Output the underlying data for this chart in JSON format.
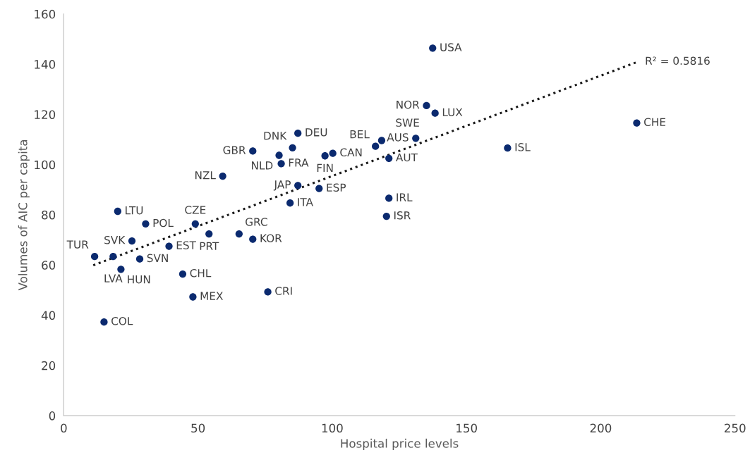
{
  "chart_data": {
    "type": "scatter",
    "xlabel": "Hospital price levels",
    "ylabel": "Volumes of AIC per capita",
    "xlim": [
      0,
      250
    ],
    "xticks": [
      0,
      50,
      100,
      150,
      200,
      250
    ],
    "ylim": [
      0,
      160
    ],
    "yticks": [
      0,
      20,
      40,
      60,
      80,
      100,
      120,
      140,
      160
    ],
    "grid": false,
    "marker": "circle",
    "series": [
      {
        "color": "#0b2a6f",
        "x": [
          137.4,
          135.1,
          138.3,
          131.1,
          121.1,
          165.3,
          213.4,
          87.2,
          85.2,
          70.4,
          80.2,
          81.0,
          97.3,
          100.2,
          116.1,
          118.4,
          59.2,
          87.2,
          95.1,
          84.3,
          121.1,
          120.2,
          20.1,
          30.5,
          49.0,
          28.3,
          54.1,
          65.3,
          70.4,
          25.4,
          39.2,
          18.4,
          11.5,
          21.3,
          44.3,
          48.1,
          76.0,
          15.0
        ],
        "values": [
          146.4,
          123.5,
          120.5,
          110.5,
          102.5,
          106.6,
          116.6,
          112.5,
          106.7,
          105.4,
          103.7,
          100.4,
          103.5,
          104.5,
          107.3,
          109.6,
          95.4,
          91.7,
          90.5,
          84.7,
          86.6,
          79.4,
          81.4,
          76.4,
          76.4,
          62.4,
          72.4,
          72.4,
          70.3,
          69.6,
          67.5,
          63.4,
          63.4,
          58.3,
          56.4,
          47.3,
          49.3,
          37.3
        ]
      },
      {
        "type": "line",
        "color": "#1a1a1a",
        "line_style": "dotted",
        "marker": "none",
        "x": [
          11.0,
          213.9
        ],
        "values": [
          59.9,
          141.0
        ]
      }
    ],
    "annotations": [
      {
        "text": "USA",
        "x": 137.4,
        "y": 146.4
      },
      {
        "text": "NOR",
        "x": 135.1,
        "y": 123.5
      },
      {
        "text": "LUX",
        "x": 138.3,
        "y": 120.5
      },
      {
        "text": "AUS",
        "x": 131.1,
        "y": 110.5
      },
      {
        "text": "AUT",
        "x": 121.1,
        "y": 102.5
      },
      {
        "text": "ISL",
        "x": 165.3,
        "y": 106.6
      },
      {
        "text": "CHE",
        "x": 213.4,
        "y": 116.6
      },
      {
        "text": "DEU",
        "x": 87.2,
        "y": 112.5
      },
      {
        "text": "DNK",
        "x": 85.2,
        "y": 106.7
      },
      {
        "text": "GBR",
        "x": 70.4,
        "y": 105.4
      },
      {
        "text": "NLD",
        "x": 80.2,
        "y": 103.7
      },
      {
        "text": "FRA",
        "x": 81.0,
        "y": 100.4
      },
      {
        "text": "FIN",
        "x": 97.3,
        "y": 103.5
      },
      {
        "text": "CAN",
        "x": 100.2,
        "y": 104.5
      },
      {
        "text": "BEL",
        "x": 116.1,
        "y": 107.3
      },
      {
        "text": "SWE",
        "x": 118.4,
        "y": 109.6
      },
      {
        "text": "NZL",
        "x": 59.2,
        "y": 95.4
      },
      {
        "text": "JAP",
        "x": 87.2,
        "y": 91.7
      },
      {
        "text": "ESP",
        "x": 95.1,
        "y": 90.5
      },
      {
        "text": "ITA",
        "x": 84.3,
        "y": 84.7
      },
      {
        "text": "IRL",
        "x": 121.1,
        "y": 86.6
      },
      {
        "text": "ISR",
        "x": 120.2,
        "y": 79.4
      },
      {
        "text": "LTU",
        "x": 20.1,
        "y": 81.4
      },
      {
        "text": "POL",
        "x": 30.5,
        "y": 76.4
      },
      {
        "text": "CZE",
        "x": 49.0,
        "y": 76.4
      },
      {
        "text": "SVN",
        "x": 28.3,
        "y": 62.4
      },
      {
        "text": "PRT",
        "x": 54.1,
        "y": 72.4
      },
      {
        "text": "GRC",
        "x": 65.3,
        "y": 72.4
      },
      {
        "text": "KOR",
        "x": 70.4,
        "y": 70.3
      },
      {
        "text": "SVK",
        "x": 25.4,
        "y": 69.6
      },
      {
        "text": "EST",
        "x": 39.2,
        "y": 67.5
      },
      {
        "text": "LVA",
        "x": 18.4,
        "y": 63.4
      },
      {
        "text": "TUR",
        "x": 11.5,
        "y": 63.4
      },
      {
        "text": "HUN",
        "x": 21.3,
        "y": 58.3
      },
      {
        "text": "CHL",
        "x": 44.3,
        "y": 56.4
      },
      {
        "text": "MEX",
        "x": 48.1,
        "y": 47.3
      },
      {
        "text": "CRI",
        "x": 76.0,
        "y": 49.3
      },
      {
        "text": "COL",
        "x": 15.0,
        "y": 37.3
      },
      {
        "text": "R² = 0.5816",
        "x": 213.9,
        "y": 141.0
      }
    ]
  }
}
